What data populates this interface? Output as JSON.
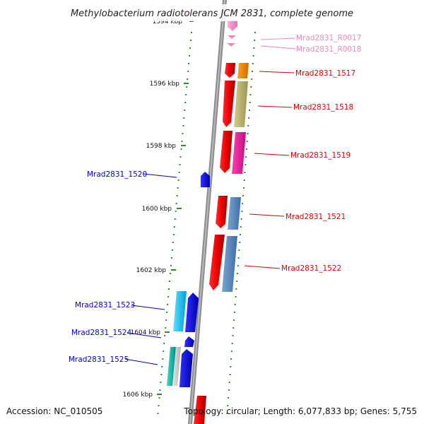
{
  "title": "Methylobacterium radiotolerans JCM 2831, complete genome",
  "footer": {
    "accession": "Accession: NC_010505",
    "topology": "Topology: circular; Length: 6,077,833 bp; Genes: 5,755"
  },
  "colors": {
    "backbone": "#8a8a8a",
    "tick": "#2e8b2e",
    "rna_label": "#ee88bb",
    "forward_label": "#dd0000",
    "reverse_label": "#0000cc"
  },
  "kbp_ticks": [
    "1594 kbp",
    "1596 kbp",
    "1598 kbp",
    "1600 kbp",
    "1602 kbp",
    "1604 kbp",
    "1606 kbp"
  ],
  "genes": [
    {
      "id": "rna",
      "label": "Mrad2831_R0017",
      "color": "#ee88bb"
    },
    {
      "id": "rnb",
      "label": "Mrad2831_R0018",
      "color": "#ee88bb"
    },
    {
      "id": "g1517",
      "label": "Mrad2831_1517",
      "color": "#dd0000"
    },
    {
      "id": "g1518",
      "label": "Mrad2831_1518",
      "color": "#dd0000"
    },
    {
      "id": "g1519",
      "label": "Mrad2831_1519",
      "color": "#dd0000"
    },
    {
      "id": "g1520",
      "label": "Mrad2831_1520",
      "color": "#0000cc"
    },
    {
      "id": "g1521",
      "label": "Mrad2831_1521",
      "color": "#dd0000"
    },
    {
      "id": "g1522",
      "label": "Mrad2831_1522",
      "color": "#dd0000"
    },
    {
      "id": "g1523",
      "label": "Mrad2831_1523",
      "color": "#0000cc"
    },
    {
      "id": "g1524",
      "label": "Mrad2831_1524",
      "color": "#0000cc"
    },
    {
      "id": "g1525",
      "label": "Mrad2831_1525",
      "color": "#0000cc"
    }
  ]
}
